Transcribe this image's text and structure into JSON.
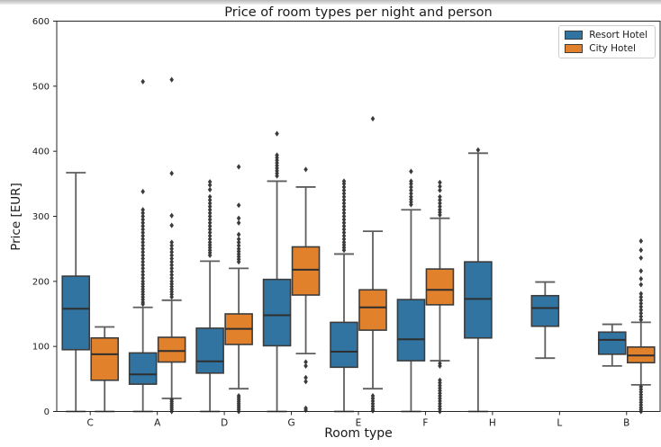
{
  "chart_data": {
    "type": "boxplot",
    "title": "Price of room types per night and person",
    "xlabel": "Room type",
    "ylabel": "Price [EUR]",
    "categories": [
      "C",
      "A",
      "D",
      "G",
      "E",
      "F",
      "H",
      "L",
      "B"
    ],
    "ylim": [
      0,
      600
    ],
    "yticks": [
      0,
      100,
      200,
      300,
      400,
      500,
      600
    ],
    "grid": false,
    "legend_position": "upper right",
    "colors": {
      "edge": "#3c3c3c",
      "whisker": "#5e5e5e",
      "median": "#2e2e2e",
      "flier": "#3b3b3b",
      "spine": "#262626"
    },
    "series": [
      {
        "name": "Resort Hotel",
        "color": "#3274a1",
        "boxes": [
          {
            "whislo": 0,
            "q1": 95,
            "med": 158,
            "q3": 208,
            "whishi": 367,
            "fliers": []
          },
          {
            "whislo": 0,
            "q1": 42,
            "med": 57,
            "q3": 90,
            "whishi": 160,
            "fliers": [
              507,
              338,
              310,
              305,
              300,
              295,
              290,
              285,
              280,
              275,
              270,
              265,
              260,
              255,
              250,
              245,
              240,
              235,
              230,
              225,
              220,
              215,
              210,
              205,
              200,
              196,
              192,
              188,
              184,
              180,
              176,
              172,
              168,
              165
            ]
          },
          {
            "whislo": 0,
            "q1": 59,
            "med": 77,
            "q3": 128,
            "whishi": 231,
            "fliers": [
              353,
              348,
              341,
              330,
              325,
              320,
              315,
              310,
              305,
              300,
              295,
              290,
              285,
              280,
              275,
              270,
              265,
              260,
              256,
              252,
              248,
              244,
              240
            ]
          },
          {
            "whislo": 0,
            "q1": 101,
            "med": 148,
            "q3": 203,
            "whishi": 354,
            "fliers": [
              427,
              394,
              390,
              386,
              382,
              378,
              374,
              370,
              366,
              362
            ]
          },
          {
            "whislo": 0,
            "q1": 68,
            "med": 92,
            "q3": 137,
            "whishi": 242,
            "fliers": [
              354,
              350,
              345,
              340,
              335,
              330,
              325,
              320,
              315,
              310,
              305,
              300,
              295,
              290,
              285,
              280,
              275,
              270,
              265,
              260,
              256,
              252,
              248
            ]
          },
          {
            "whislo": 0,
            "q1": 78,
            "med": 111,
            "q3": 172,
            "whishi": 310,
            "fliers": [
              369,
              354,
              350,
              345,
              340,
              335,
              330,
              326,
              322,
              318
            ]
          },
          {
            "whislo": 0,
            "q1": 113,
            "med": 173,
            "q3": 230,
            "whishi": 397,
            "fliers": [
              402
            ]
          },
          {
            "whislo": 82,
            "q1": 131,
            "med": 159,
            "q3": 178,
            "whishi": 199,
            "fliers": []
          },
          {
            "whislo": 70,
            "q1": 88,
            "med": 110,
            "q3": 122,
            "whishi": 134,
            "fliers": []
          }
        ]
      },
      {
        "name": "City Hotel",
        "color": "#e1812c",
        "boxes": [
          {
            "whislo": 0,
            "q1": 48,
            "med": 88,
            "q3": 113,
            "whishi": 130,
            "fliers": []
          },
          {
            "whislo": 20,
            "q1": 76,
            "med": 93,
            "q3": 114,
            "whishi": 171,
            "fliers": [
              510,
              366,
              301,
              286,
              260,
              255,
              250,
              245,
              240,
              235,
              230,
              225,
              220,
              215,
              210,
              205,
              200,
              196,
              192,
              188,
              184,
              180,
              176,
              18,
              15,
              12,
              9,
              6,
              3,
              0
            ]
          },
          {
            "whislo": 35,
            "q1": 103,
            "med": 127,
            "q3": 150,
            "whishi": 220,
            "fliers": [
              376,
              317,
              297,
              290,
              272,
              265,
              260,
              255,
              250,
              246,
              242,
              238,
              234,
              230,
              24,
              21,
              18,
              15,
              12,
              9,
              6,
              3,
              0
            ]
          },
          {
            "whislo": 89,
            "q1": 179,
            "med": 218,
            "q3": 253,
            "whishi": 345,
            "fliers": [
              372,
              76,
              70,
              52,
              46,
              5,
              2
            ]
          },
          {
            "whislo": 35,
            "q1": 125,
            "med": 160,
            "q3": 187,
            "whishi": 277,
            "fliers": [
              450,
              24,
              20,
              16,
              12,
              8,
              4,
              1
            ]
          },
          {
            "whislo": 78,
            "q1": 164,
            "med": 187,
            "q3": 219,
            "whishi": 297,
            "fliers": [
              352,
              346,
              340,
              330,
              325,
              320,
              315,
              310,
              306,
              302,
              74,
              70,
              48,
              44,
              40,
              36,
              32,
              28,
              24,
              20,
              16,
              12,
              8,
              4,
              0
            ]
          },
          null,
          null,
          {
            "whislo": 41,
            "q1": 75,
            "med": 86,
            "q3": 99,
            "whishi": 137,
            "fliers": [
              262,
              248,
              236,
              216,
              204,
              195,
              181,
              176,
              171,
              166,
              161,
              156,
              151,
              146,
              141,
              38,
              34,
              30,
              26,
              22,
              18,
              14,
              10,
              6,
              3,
              0
            ]
          }
        ]
      }
    ]
  }
}
